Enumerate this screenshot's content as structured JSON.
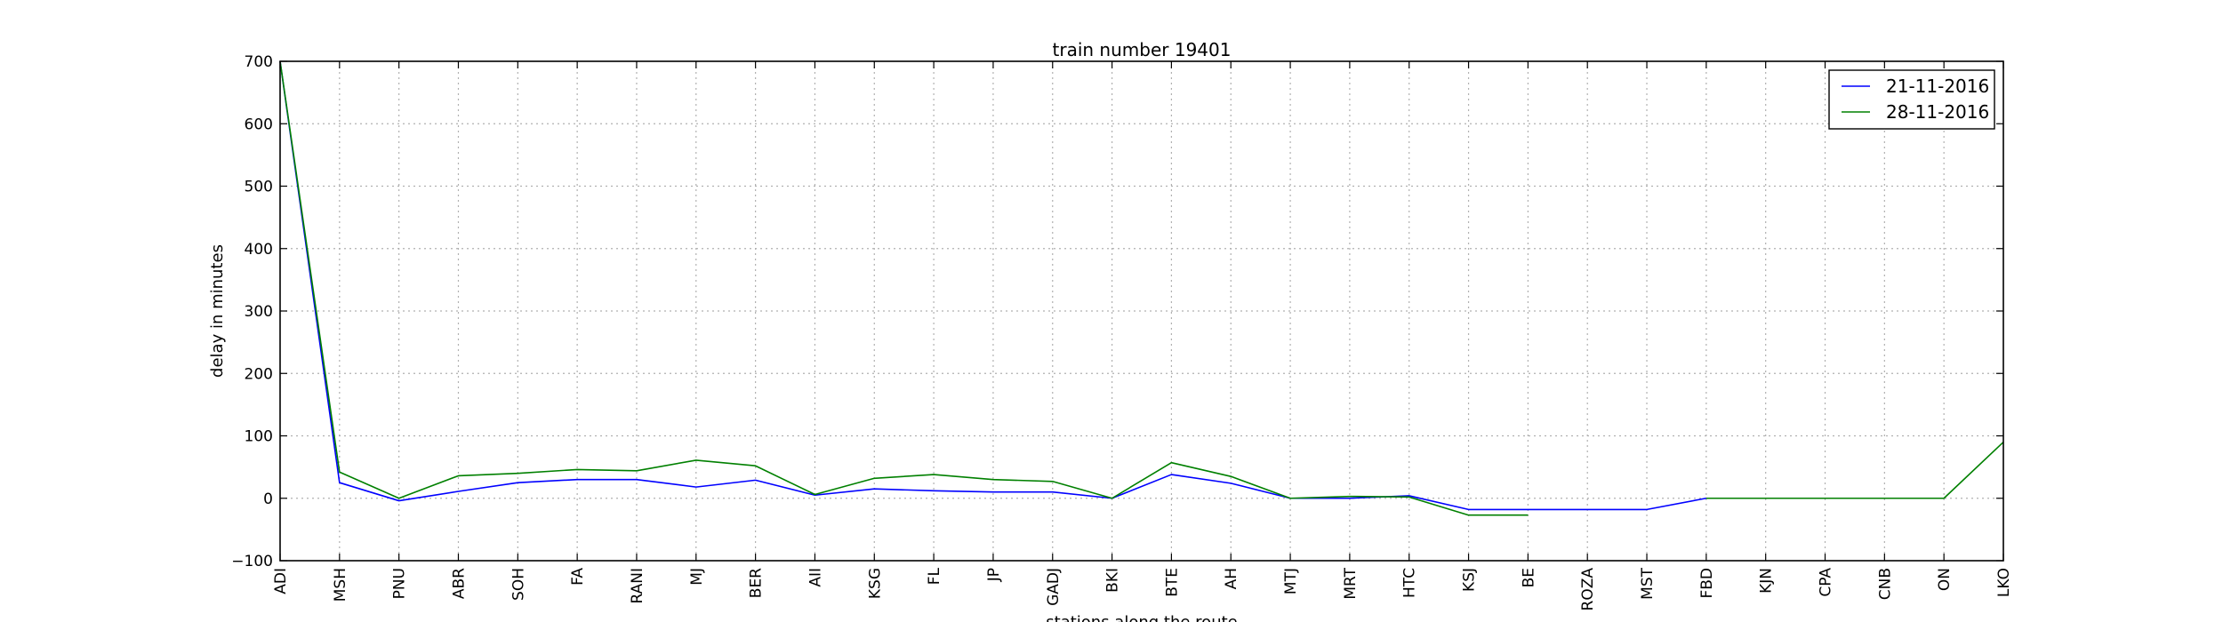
{
  "chart_data": {
    "type": "line",
    "title": "train number 19401",
    "xlabel": "stations along the route",
    "ylabel": "delay in minutes",
    "categories": [
      "ADI",
      "MSH",
      "PNU",
      "ABR",
      "SOH",
      "FA",
      "RANI",
      "MJ",
      "BER",
      "AII",
      "KSG",
      "FL",
      "JP",
      "GADJ",
      "BKI",
      "BTE",
      "AH",
      "MTJ",
      "MRT",
      "HTC",
      "KSJ",
      "BE",
      "ROZA",
      "MST",
      "FBD",
      "KJN",
      "CPA",
      "CNB",
      "ON",
      "LKO"
    ],
    "ylim": [
      -100,
      700
    ],
    "yticks": [
      -100,
      0,
      100,
      200,
      300,
      400,
      500,
      600,
      700
    ],
    "grid": true,
    "legend_position": "top-right",
    "series": [
      {
        "name": "21-11-2016",
        "color": "#0000ff",
        "values": [
          700,
          25,
          -4,
          11,
          25,
          30,
          30,
          18,
          29,
          5,
          15,
          12,
          10,
          10,
          0,
          38,
          24,
          0,
          0,
          4,
          -18,
          -18,
          -18,
          -18,
          0,
          0,
          0,
          0,
          0,
          null
        ]
      },
      {
        "name": "28-11-2016",
        "color": "#008000",
        "values": [
          700,
          42,
          0,
          36,
          40,
          46,
          44,
          61,
          52,
          6,
          32,
          38,
          30,
          27,
          0,
          57,
          35,
          0,
          3,
          2,
          -27,
          -27,
          null,
          null,
          0,
          0,
          0,
          0,
          0,
          90
        ]
      }
    ]
  }
}
